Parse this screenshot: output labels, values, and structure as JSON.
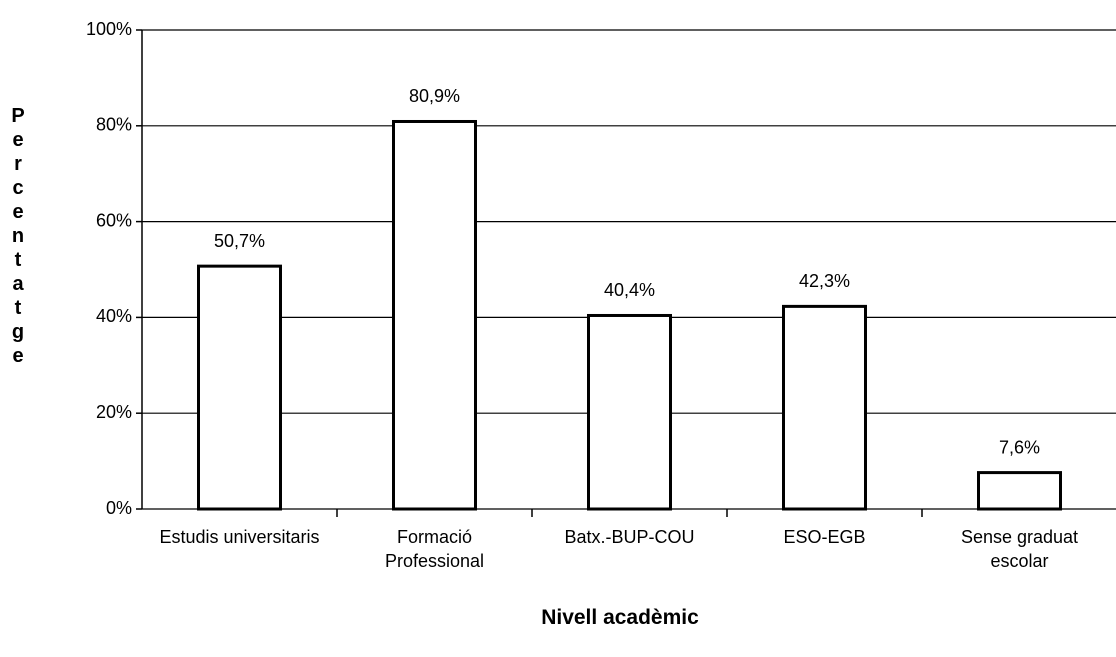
{
  "chart_data": {
    "type": "bar",
    "y_label": "Percentatge",
    "x_label": "Nivell acadèmic",
    "categories": [
      "Estudis universitaris",
      "Formació Professional",
      "Batx.-BUP-COU",
      "ESO-EGB",
      "Sense graduat escolar"
    ],
    "values": [
      50.7,
      80.9,
      40.4,
      42.3,
      7.6
    ],
    "value_labels": [
      "50,7%",
      "80,9%",
      "40,4%",
      "42,3%",
      "7,6%"
    ],
    "color": "#ffffff",
    "ylim": [
      0,
      100
    ],
    "yticks": [
      {
        "value": 0,
        "label": "0%"
      },
      {
        "value": 20,
        "label": "20%"
      },
      {
        "value": 40,
        "label": "40%"
      },
      {
        "value": 60,
        "label": "60%"
      },
      {
        "value": 80,
        "label": "80%"
      },
      {
        "value": 100,
        "label": "100%"
      }
    ],
    "grid": true
  }
}
